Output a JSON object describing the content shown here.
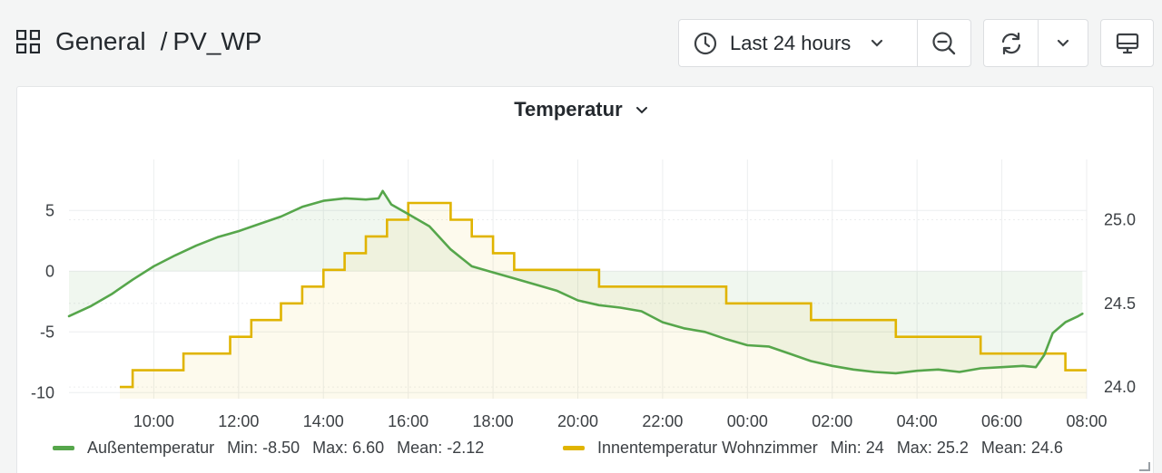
{
  "breadcrumb": {
    "folder": "General",
    "separator": "/",
    "dashboard": "PV_WP"
  },
  "toolbar": {
    "time_range_label": "Last 24 hours",
    "icons": [
      "grid-icon",
      "clock-icon",
      "chevron-down-icon",
      "zoom-out-icon",
      "refresh-icon",
      "chevron-down-icon",
      "tv-icon"
    ]
  },
  "panel": {
    "title": "Temperatur"
  },
  "colors": {
    "green": "#56a64b",
    "yellow": "#e0b400",
    "grid": "#eceeef"
  },
  "legend": {
    "outside": {
      "name": "Außentemperatur",
      "min": "Min: -8.50",
      "max": "Max: 6.60",
      "mean": "Mean: -2.12"
    },
    "inside": {
      "name": "Innentemperatur Wohnzimmer",
      "min": "Min: 24",
      "max": "Max: 25.2",
      "mean": "Mean: 24.6"
    }
  },
  "chart_data": {
    "type": "line",
    "x_unit": "hours (starting 08:00, 24h window)",
    "x_tick_labels": [
      "10:00",
      "12:00",
      "14:00",
      "16:00",
      "18:00",
      "20:00",
      "22:00",
      "00:00",
      "02:00",
      "04:00",
      "06:00",
      "08:00"
    ],
    "y_left": {
      "ticks": [
        5,
        0,
        -5,
        -10
      ],
      "range": [
        -10.5,
        9.2
      ]
    },
    "y_right": {
      "ticks": [
        "25.0",
        "24.5",
        "24.0"
      ],
      "range": [
        23.93,
        25.36
      ]
    },
    "legend_placement": "bottom",
    "series": [
      {
        "name": "Außentemperatur",
        "axis": "left",
        "points": [
          [
            8.0,
            -3.7
          ],
          [
            8.5,
            -2.9
          ],
          [
            9.0,
            -1.9
          ],
          [
            9.5,
            -0.7
          ],
          [
            10.0,
            0.4
          ],
          [
            10.5,
            1.3
          ],
          [
            11.0,
            2.1
          ],
          [
            11.5,
            2.8
          ],
          [
            12.0,
            3.3
          ],
          [
            12.5,
            3.9
          ],
          [
            13.0,
            4.5
          ],
          [
            13.5,
            5.3
          ],
          [
            14.0,
            5.8
          ],
          [
            14.5,
            6.0
          ],
          [
            15.0,
            5.9
          ],
          [
            15.3,
            6.0
          ],
          [
            15.4,
            6.6
          ],
          [
            15.6,
            5.5
          ],
          [
            16.0,
            4.7
          ],
          [
            16.5,
            3.7
          ],
          [
            17.0,
            1.8
          ],
          [
            17.5,
            0.4
          ],
          [
            18.0,
            -0.1
          ],
          [
            18.5,
            -0.6
          ],
          [
            19.0,
            -1.1
          ],
          [
            19.5,
            -1.6
          ],
          [
            20.0,
            -2.4
          ],
          [
            20.5,
            -2.8
          ],
          [
            21.0,
            -3.0
          ],
          [
            21.5,
            -3.3
          ],
          [
            22.0,
            -4.2
          ],
          [
            22.5,
            -4.7
          ],
          [
            23.0,
            -5.0
          ],
          [
            23.5,
            -5.6
          ],
          [
            24.0,
            -6.1
          ],
          [
            24.5,
            -6.2
          ],
          [
            25.0,
            -6.8
          ],
          [
            25.5,
            -7.4
          ],
          [
            26.0,
            -7.8
          ],
          [
            26.5,
            -8.1
          ],
          [
            27.0,
            -8.3
          ],
          [
            27.5,
            -8.4
          ],
          [
            28.0,
            -8.2
          ],
          [
            28.5,
            -8.1
          ],
          [
            29.0,
            -8.3
          ],
          [
            29.5,
            -8.0
          ],
          [
            30.0,
            -7.9
          ],
          [
            30.5,
            -7.8
          ],
          [
            30.8,
            -7.9
          ],
          [
            31.0,
            -6.9
          ],
          [
            31.2,
            -5.1
          ],
          [
            31.5,
            -4.2
          ],
          [
            31.8,
            -3.7
          ],
          [
            31.9,
            -3.5
          ]
        ]
      },
      {
        "name": "Innentemperatur Wohnzimmer",
        "axis": "right",
        "points": [
          [
            9.2,
            24.0
          ],
          [
            9.5,
            24.1
          ],
          [
            10.0,
            24.1
          ],
          [
            10.3,
            24.1
          ],
          [
            10.5,
            24.1
          ],
          [
            10.7,
            24.2
          ],
          [
            11.0,
            24.2
          ],
          [
            11.3,
            24.2
          ],
          [
            11.5,
            24.2
          ],
          [
            11.8,
            24.3
          ],
          [
            12.0,
            24.3
          ],
          [
            12.3,
            24.4
          ],
          [
            12.7,
            24.4
          ],
          [
            13.0,
            24.5
          ],
          [
            13.5,
            24.6
          ],
          [
            14.0,
            24.7
          ],
          [
            14.5,
            24.8
          ],
          [
            14.8,
            24.8
          ],
          [
            15.0,
            24.9
          ],
          [
            15.5,
            25.0
          ],
          [
            16.0,
            25.1
          ],
          [
            16.5,
            25.1
          ],
          [
            17.0,
            25.0
          ],
          [
            17.5,
            24.9
          ],
          [
            18.0,
            24.8
          ],
          [
            18.5,
            24.7
          ],
          [
            19.0,
            24.7
          ],
          [
            19.5,
            24.7
          ],
          [
            20.0,
            24.7
          ],
          [
            20.5,
            24.6
          ],
          [
            21.0,
            24.6
          ],
          [
            21.5,
            24.6
          ],
          [
            22.0,
            24.6
          ],
          [
            22.5,
            24.6
          ],
          [
            23.0,
            24.6
          ],
          [
            23.5,
            24.5
          ],
          [
            24.0,
            24.5
          ],
          [
            24.5,
            24.5
          ],
          [
            25.0,
            24.5
          ],
          [
            25.5,
            24.4
          ],
          [
            26.0,
            24.4
          ],
          [
            26.5,
            24.4
          ],
          [
            27.0,
            24.4
          ],
          [
            27.5,
            24.3
          ],
          [
            28.0,
            24.3
          ],
          [
            28.5,
            24.3
          ],
          [
            29.0,
            24.3
          ],
          [
            29.5,
            24.2
          ],
          [
            30.0,
            24.2
          ],
          [
            30.5,
            24.2
          ],
          [
            31.0,
            24.2
          ],
          [
            31.5,
            24.1
          ],
          [
            32.0,
            24.1
          ]
        ]
      }
    ]
  }
}
